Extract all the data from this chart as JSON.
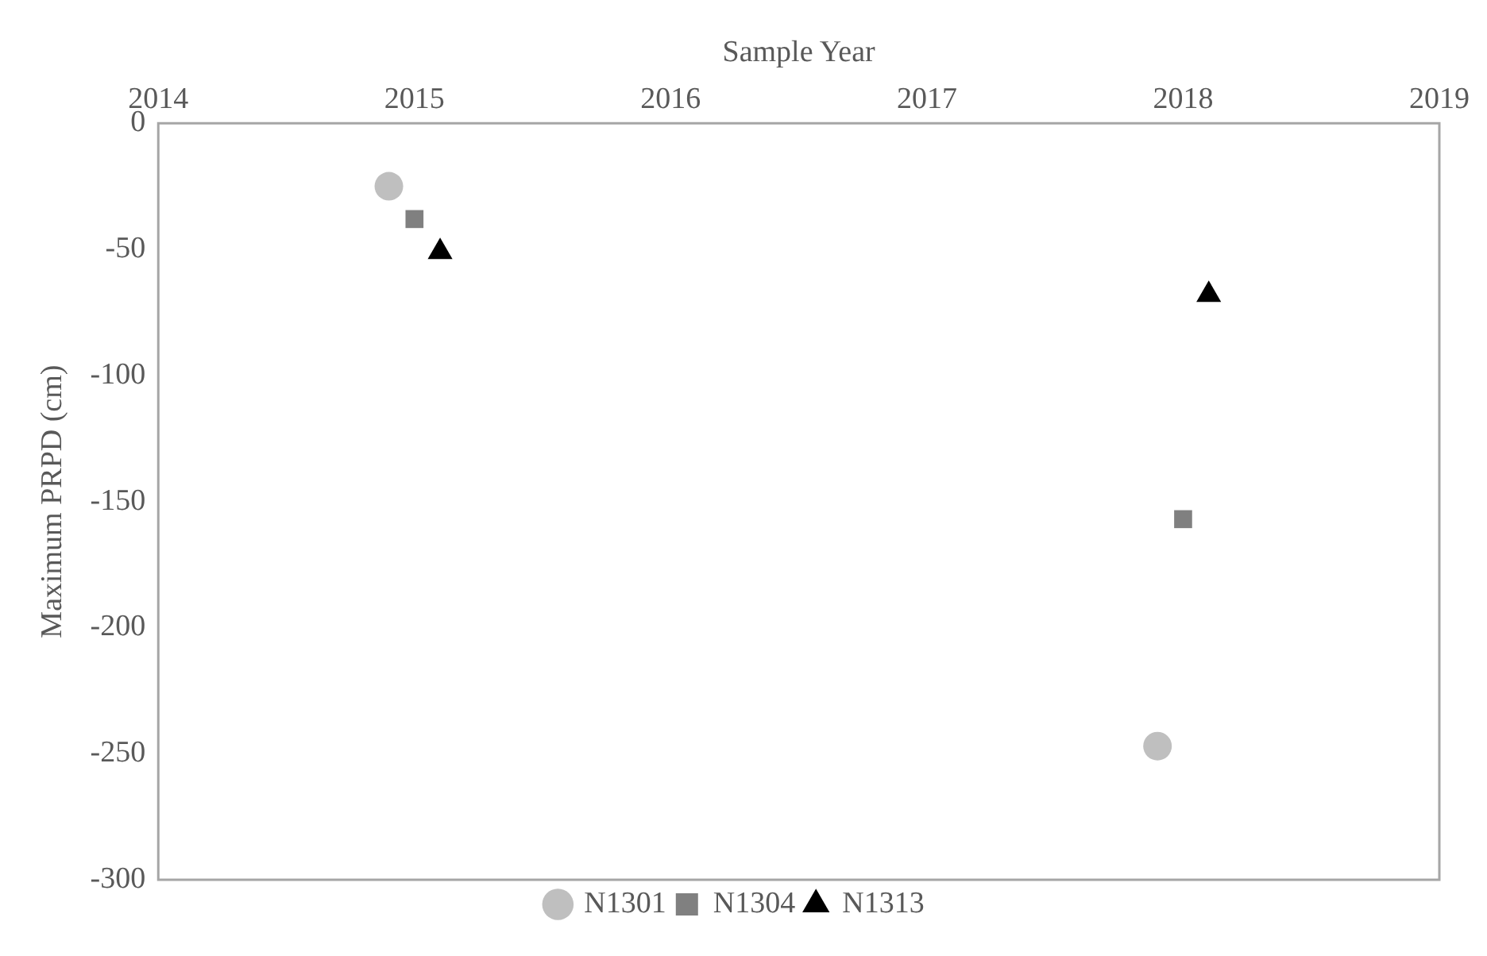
{
  "chart_data": {
    "type": "scatter",
    "xlabel": "Sample Year",
    "ylabel": "Maximum PRPD (cm)",
    "xlim": [
      2014,
      2019
    ],
    "xticks": [
      2014,
      2015,
      2016,
      2017,
      2018,
      2019
    ],
    "ylim": [
      -300,
      0
    ],
    "yticks": [
      -300,
      -250,
      -200,
      -150,
      -100,
      -50,
      0
    ],
    "grid": false,
    "legend": "bottom",
    "series": [
      {
        "name": "N1301",
        "color": "#bfbfbf",
        "marker": "circle",
        "x": [
          2014.9,
          2017.9
        ],
        "values": [
          -25,
          -247
        ]
      },
      {
        "name": "N1304",
        "color": "#808080",
        "marker": "square",
        "x": [
          2015.0,
          2018.0
        ],
        "values": [
          -38,
          -157
        ]
      },
      {
        "name": "N1313",
        "color": "#000000",
        "marker": "triangle",
        "x": [
          2015.1,
          2018.1
        ],
        "values": [
          -51,
          -68
        ]
      }
    ]
  }
}
